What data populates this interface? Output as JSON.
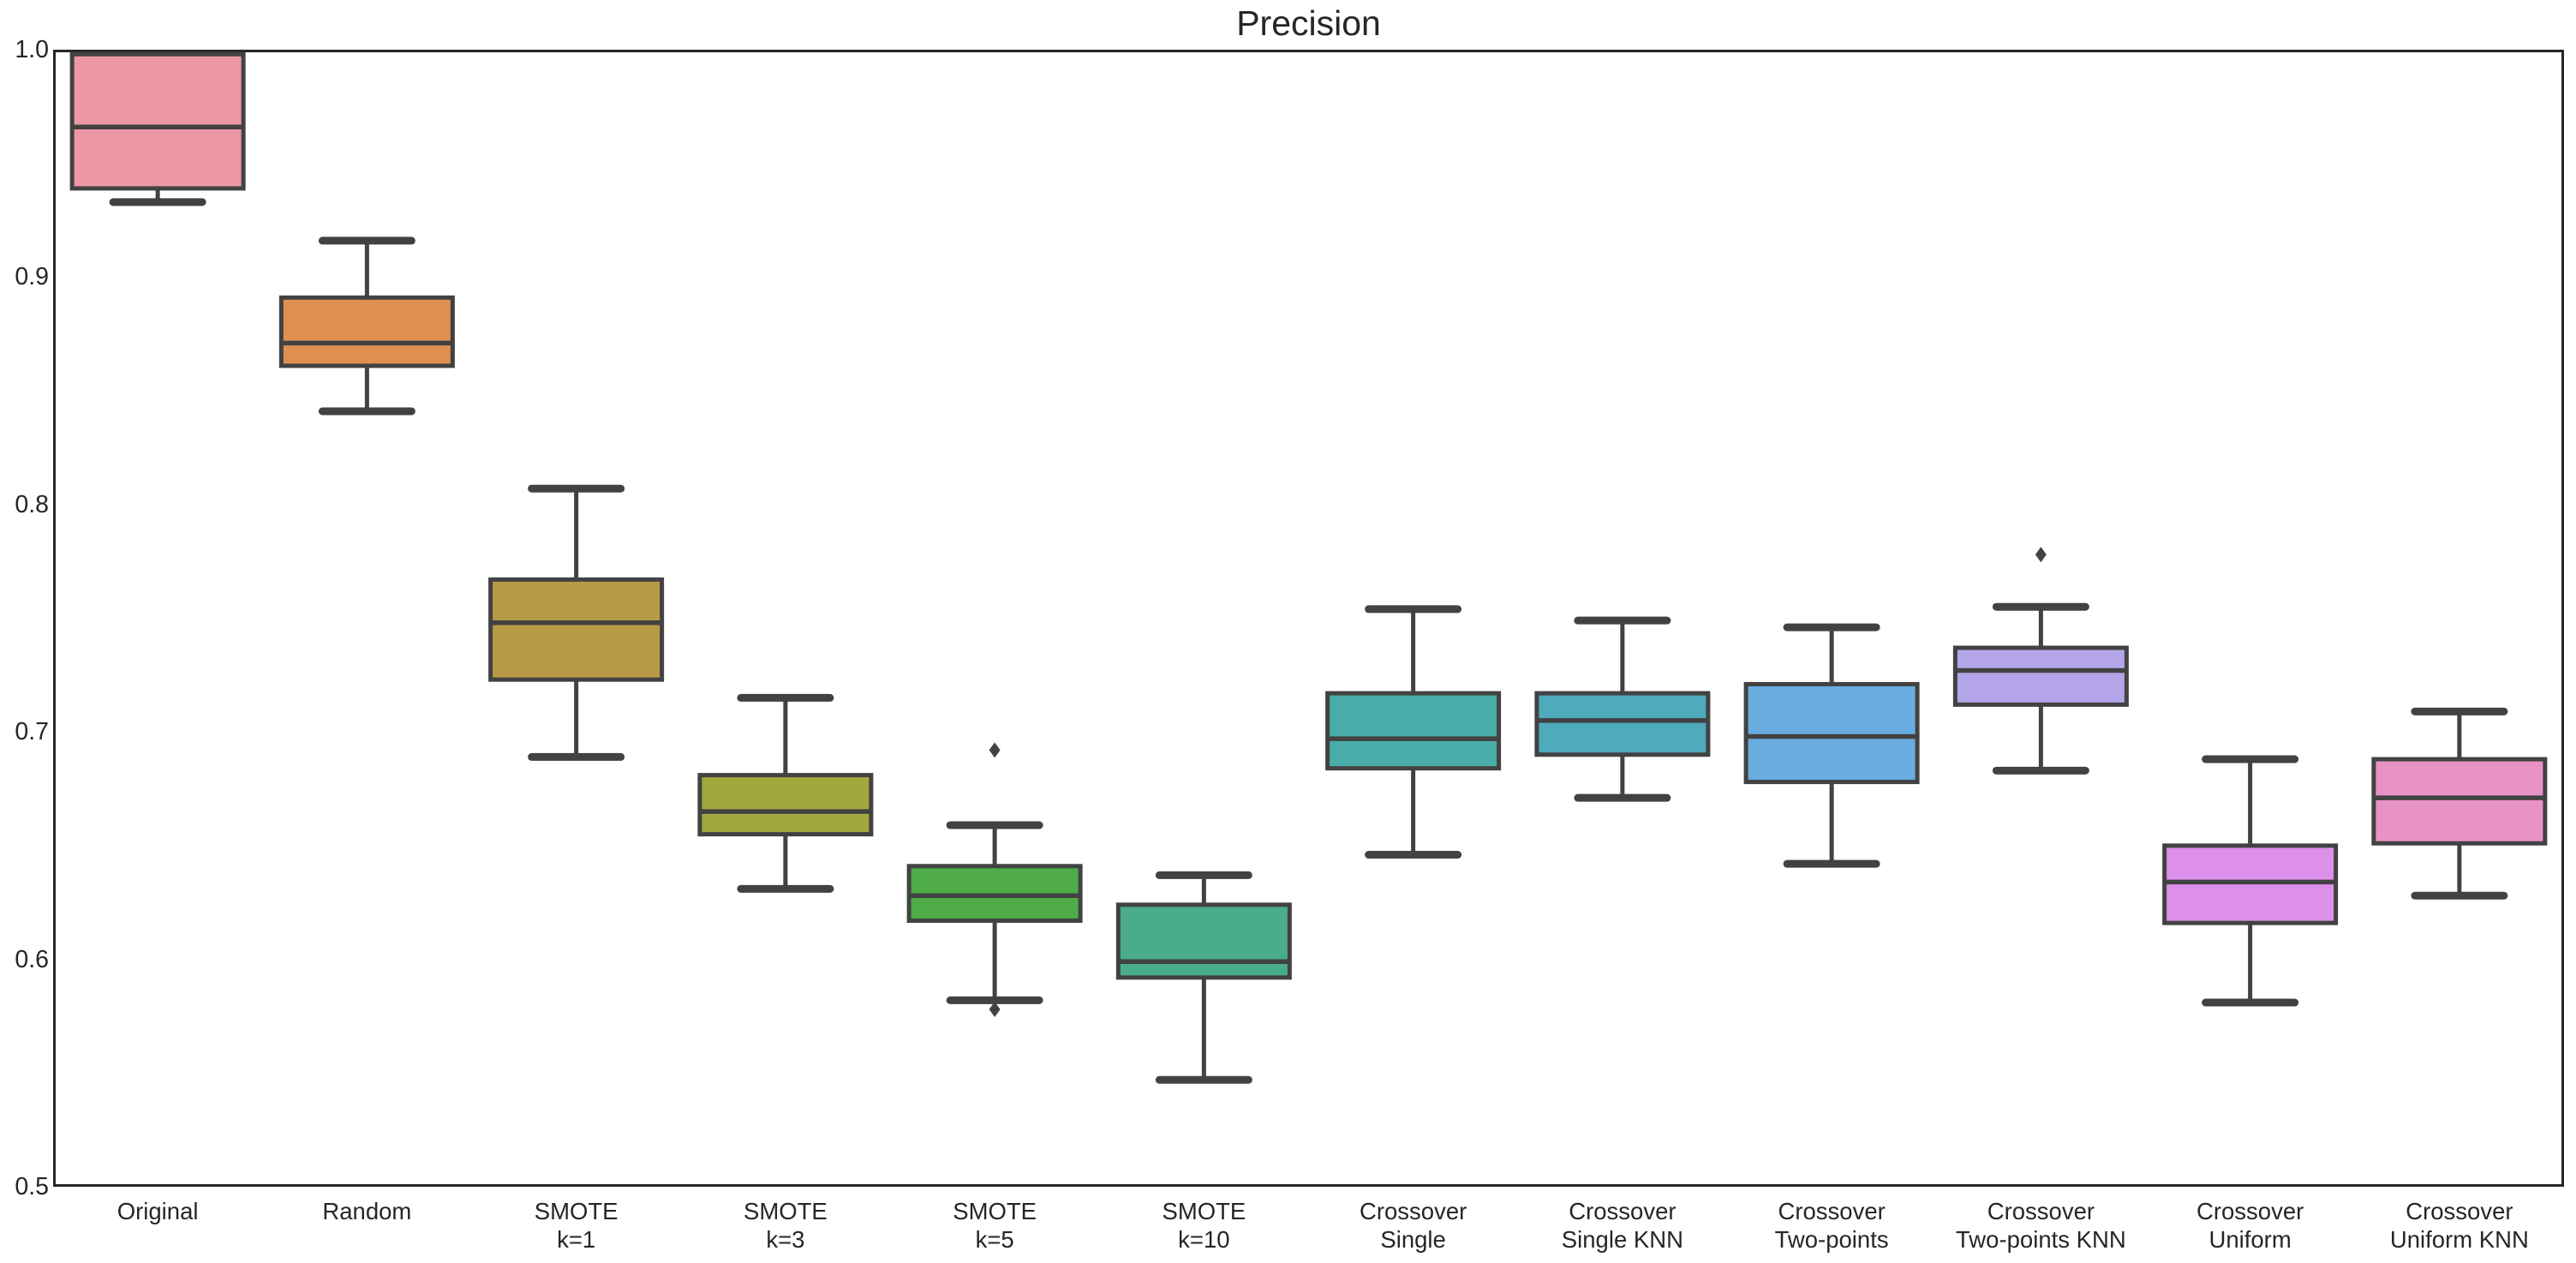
{
  "title": "Precision",
  "chart_data": {
    "type": "boxplot",
    "title": "Precision",
    "xlabel": "",
    "ylabel": "",
    "ylim": [
      0.5,
      1.0
    ],
    "grid": false,
    "frame": true,
    "background_color": "#FFFFFF",
    "line_color": "#424242",
    "frame_color": "#262626",
    "text_color": "#262626",
    "flier_marker": "diamond",
    "yticks": [
      {
        "label": "1.0",
        "value": 1.0
      },
      {
        "label": "0.9",
        "value": 0.9
      },
      {
        "label": "0.8",
        "value": 0.8
      },
      {
        "label": "0.7",
        "value": 0.7
      },
      {
        "label": "0.6",
        "value": 0.6
      },
      {
        "label": "0.5",
        "value": 0.5
      }
    ],
    "tick_labels": [
      [
        "Original"
      ],
      [
        "Random"
      ],
      [
        "SMOTE",
        "k=1"
      ],
      [
        "SMOTE",
        "k=3"
      ],
      [
        "SMOTE",
        "k=5"
      ],
      [
        "SMOTE",
        "k=10"
      ],
      [
        "Crossover",
        "Single"
      ],
      [
        "Crossover",
        "Single KNN"
      ],
      [
        "Crossover",
        "Two-points"
      ],
      [
        "Crossover",
        "Two-points KNN"
      ],
      [
        "Crossover",
        "Uniform"
      ],
      [
        "Crossover",
        "Uniform KNN"
      ]
    ],
    "series": [
      {
        "name": "Original",
        "color": "#EC98A4",
        "whislo": 0.933,
        "q1": 0.939,
        "med": 0.966,
        "q3": 0.998,
        "whishi": 0.998,
        "fliers": []
      },
      {
        "name": "Random",
        "color": "#DE9152",
        "whislo": 0.841,
        "q1": 0.861,
        "med": 0.871,
        "q3": 0.891,
        "whishi": 0.916,
        "fliers": []
      },
      {
        "name": "SMOTE k=1",
        "color": "#B89B46",
        "whislo": 0.689,
        "q1": 0.723,
        "med": 0.748,
        "q3": 0.767,
        "whishi": 0.807,
        "fliers": []
      },
      {
        "name": "SMOTE k=3",
        "color": "#A3A83E",
        "whislo": 0.631,
        "q1": 0.655,
        "med": 0.665,
        "q3": 0.681,
        "whishi": 0.715,
        "fliers": []
      },
      {
        "name": "SMOTE k=5",
        "color": "#4FAB47",
        "whislo": 0.582,
        "q1": 0.617,
        "med": 0.628,
        "q3": 0.641,
        "whishi": 0.659,
        "fliers": [
          0.692,
          0.578
        ]
      },
      {
        "name": "SMOTE k=10",
        "color": "#49AC8C",
        "whislo": 0.547,
        "q1": 0.592,
        "med": 0.599,
        "q3": 0.624,
        "whishi": 0.637,
        "fliers": []
      },
      {
        "name": "Crossover Single",
        "color": "#4AACA9",
        "whislo": 0.646,
        "q1": 0.684,
        "med": 0.697,
        "q3": 0.717,
        "whishi": 0.754,
        "fliers": []
      },
      {
        "name": "Crossover Single KNN",
        "color": "#4FAABC",
        "whislo": 0.671,
        "q1": 0.69,
        "med": 0.705,
        "q3": 0.717,
        "whishi": 0.749,
        "fliers": []
      },
      {
        "name": "Crossover Two-points",
        "color": "#69ACDF",
        "whislo": 0.642,
        "q1": 0.678,
        "med": 0.698,
        "q3": 0.721,
        "whishi": 0.746,
        "fliers": []
      },
      {
        "name": "Crossover Two-points KNN",
        "color": "#B3A5E8",
        "whislo": 0.683,
        "q1": 0.712,
        "med": 0.727,
        "q3": 0.737,
        "whishi": 0.755,
        "fliers": [
          0.778
        ]
      },
      {
        "name": "Crossover Uniform",
        "color": "#DD90E9",
        "whislo": 0.581,
        "q1": 0.616,
        "med": 0.634,
        "q3": 0.65,
        "whishi": 0.688,
        "fliers": []
      },
      {
        "name": "Crossover Uniform KNN",
        "color": "#E892C5",
        "whislo": 0.628,
        "q1": 0.651,
        "med": 0.671,
        "q3": 0.688,
        "whishi": 0.709,
        "fliers": []
      }
    ]
  }
}
